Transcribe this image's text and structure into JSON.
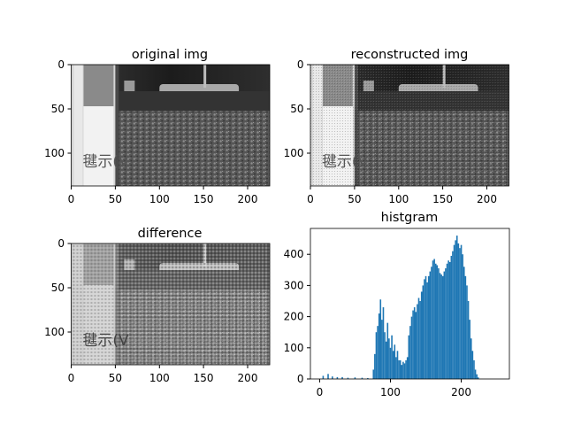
{
  "chart_data": [
    {
      "type": "image",
      "title": "original img",
      "xticks": [
        0,
        50,
        100,
        150,
        200
      ],
      "yticks": [
        0,
        50,
        100
      ],
      "xlim": [
        0,
        225
      ],
      "ylim": [
        137,
        0
      ],
      "overlay_text": "毽示(V"
    },
    {
      "type": "image",
      "title": "reconstructed img",
      "xticks": [
        0,
        50,
        100,
        150,
        200
      ],
      "yticks": [
        0,
        50,
        100
      ],
      "xlim": [
        0,
        225
      ],
      "ylim": [
        137,
        0
      ],
      "overlay_text": "毽示(V"
    },
    {
      "type": "image",
      "title": "difference",
      "xticks": [
        0,
        50,
        100,
        150,
        200
      ],
      "yticks": [
        0,
        50,
        100
      ],
      "xlim": [
        0,
        225
      ],
      "ylim": [
        137,
        0
      ],
      "overlay_text": "毽示(V"
    },
    {
      "type": "bar",
      "title": "histgram",
      "xticks": [
        0,
        100,
        200
      ],
      "yticks": [
        0,
        100,
        200,
        300,
        400
      ],
      "xlim": [
        -13,
        268
      ],
      "ylim": [
        0,
        483
      ],
      "color": "#1f77b4",
      "bins": [
        [
          5,
          10
        ],
        [
          12,
          16
        ],
        [
          18,
          8
        ],
        [
          25,
          6
        ],
        [
          32,
          6
        ],
        [
          40,
          4
        ],
        [
          50,
          5
        ],
        [
          60,
          4
        ],
        [
          68,
          3
        ],
        [
          76,
          30
        ],
        [
          78,
          80
        ],
        [
          80,
          150
        ],
        [
          82,
          170
        ],
        [
          84,
          210
        ],
        [
          86,
          255
        ],
        [
          88,
          190
        ],
        [
          90,
          230
        ],
        [
          92,
          150
        ],
        [
          94,
          120
        ],
        [
          96,
          180
        ],
        [
          98,
          130
        ],
        [
          100,
          100
        ],
        [
          102,
          140
        ],
        [
          104,
          90
        ],
        [
          106,
          110
        ],
        [
          108,
          70
        ],
        [
          110,
          90
        ],
        [
          112,
          60
        ],
        [
          114,
          60
        ],
        [
          116,
          45
        ],
        [
          118,
          55
        ],
        [
          120,
          50
        ],
        [
          122,
          60
        ],
        [
          124,
          70
        ],
        [
          126,
          140
        ],
        [
          128,
          170
        ],
        [
          130,
          200
        ],
        [
          132,
          220
        ],
        [
          134,
          230
        ],
        [
          136,
          215
        ],
        [
          138,
          240
        ],
        [
          140,
          260
        ],
        [
          142,
          250
        ],
        [
          144,
          280
        ],
        [
          146,
          300
        ],
        [
          148,
          320
        ],
        [
          150,
          330
        ],
        [
          152,
          310
        ],
        [
          154,
          330
        ],
        [
          156,
          345
        ],
        [
          158,
          360
        ],
        [
          160,
          380
        ],
        [
          162,
          385
        ],
        [
          164,
          370
        ],
        [
          166,
          365
        ],
        [
          168,
          355
        ],
        [
          170,
          340
        ],
        [
          172,
          335
        ],
        [
          174,
          330
        ],
        [
          176,
          345
        ],
        [
          178,
          355
        ],
        [
          180,
          370
        ],
        [
          182,
          380
        ],
        [
          184,
          375
        ],
        [
          186,
          395
        ],
        [
          188,
          410
        ],
        [
          190,
          430
        ],
        [
          192,
          445
        ],
        [
          194,
          460
        ],
        [
          196,
          435
        ],
        [
          198,
          420
        ],
        [
          200,
          430
        ],
        [
          202,
          400
        ],
        [
          204,
          360
        ],
        [
          206,
          330
        ],
        [
          208,
          300
        ],
        [
          210,
          250
        ],
        [
          212,
          190
        ],
        [
          214,
          130
        ],
        [
          216,
          90
        ],
        [
          218,
          60
        ],
        [
          220,
          30
        ],
        [
          222,
          15
        ],
        [
          224,
          5
        ]
      ]
    }
  ]
}
